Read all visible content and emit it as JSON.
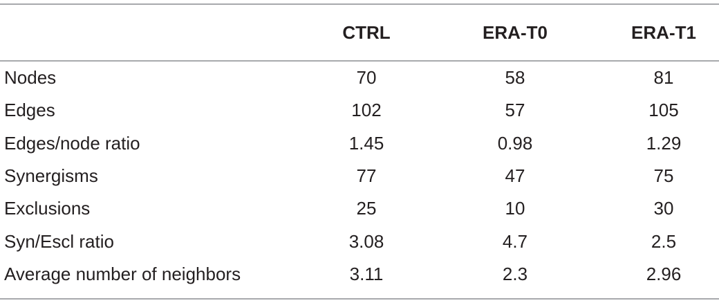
{
  "table": {
    "columns": [
      "CTRL",
      "ERA-T0",
      "ERA-T1"
    ],
    "rows": [
      [
        "Nodes",
        "70",
        "58",
        "81"
      ],
      [
        "Edges",
        "102",
        "57",
        "105"
      ],
      [
        "Edges/node ratio",
        "1.45",
        "0.98",
        "1.29"
      ],
      [
        "Synergisms",
        "77",
        "47",
        "75"
      ],
      [
        "Exclusions",
        "25",
        "10",
        "30"
      ],
      [
        "Syn/Escl ratio",
        "3.08",
        "4.7",
        "2.5"
      ],
      [
        "Average number of neighbors",
        "3.11",
        "2.3",
        "2.96"
      ]
    ]
  }
}
